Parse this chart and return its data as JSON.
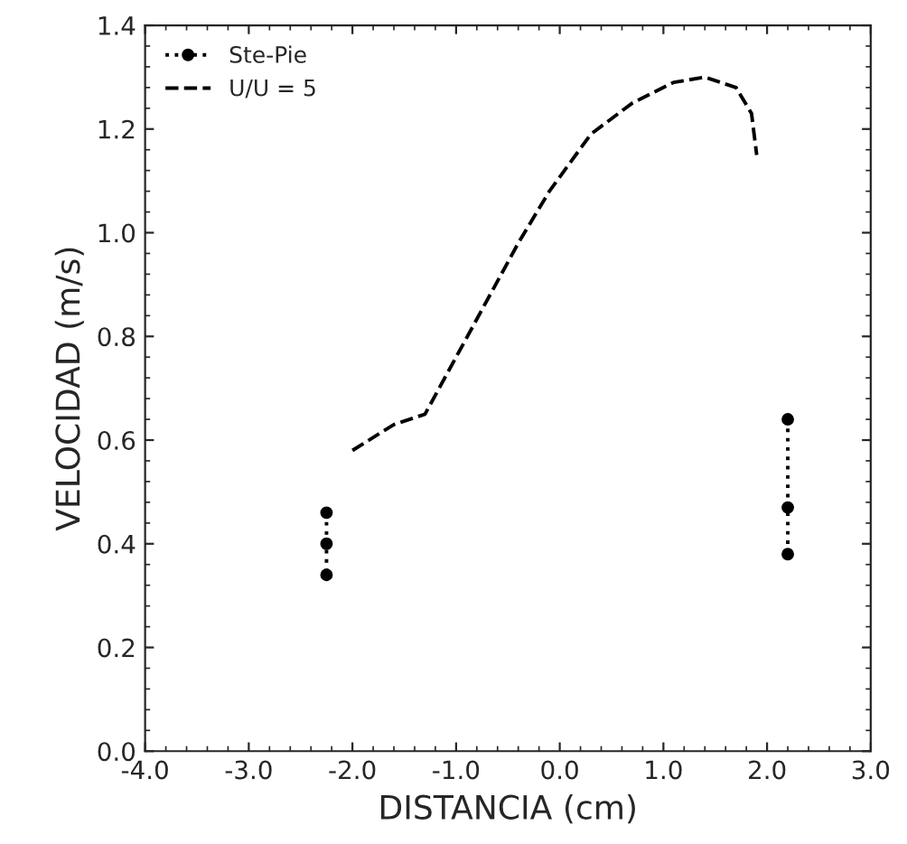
{
  "chart_data": {
    "type": "line",
    "xlabel": "DISTANCIA (cm)",
    "ylabel": "VELOCIDAD (m/s)",
    "xlim": [
      -4.0,
      3.0
    ],
    "ylim": [
      0.0,
      1.4
    ],
    "xticks": [
      {
        "value": -4.0,
        "label": "-4.0"
      },
      {
        "value": -3.0,
        "label": "-3.0"
      },
      {
        "value": -2.0,
        "label": "-2.0"
      },
      {
        "value": -1.0,
        "label": "-1.0"
      },
      {
        "value": 0.0,
        "label": "0.0"
      },
      {
        "value": 1.0,
        "label": "1.0"
      },
      {
        "value": 2.0,
        "label": "2.0"
      },
      {
        "value": 3.0,
        "label": "3.0"
      }
    ],
    "yticks": [
      {
        "value": 0.0,
        "label": "0.0"
      },
      {
        "value": 0.2,
        "label": "0.2"
      },
      {
        "value": 0.4,
        "label": "0.4"
      },
      {
        "value": 0.6,
        "label": "0.6"
      },
      {
        "value": 0.8,
        "label": "0.8"
      },
      {
        "value": 1.0,
        "label": "1.0"
      },
      {
        "value": 1.2,
        "label": "1.2"
      },
      {
        "value": 1.4,
        "label": "1.4"
      }
    ],
    "grid": false,
    "legend": "top left",
    "series": [
      {
        "name": "Ste-Pie",
        "color": "#000000",
        "line_style": "dotted",
        "marker": "circle",
        "x": [
          -2.25,
          -2.25,
          -2.25,
          0.0,
          2.2,
          2.2,
          2.2
        ],
        "values": [
          0.46,
          0.4,
          0.34,
          null,
          0.64,
          0.47,
          0.38
        ]
      },
      {
        "name": "U/U = 5",
        "color": "#000000",
        "line_style": "dashed",
        "marker": "none",
        "x": [
          -2.0,
          -1.6,
          -1.3,
          -0.4,
          -0.1,
          0.3,
          0.7,
          1.1,
          1.4,
          1.7,
          1.85,
          1.9
        ],
        "values": [
          0.58,
          0.63,
          0.65,
          0.98,
          1.08,
          1.19,
          1.25,
          1.29,
          1.3,
          1.28,
          1.23,
          1.15
        ]
      }
    ]
  }
}
